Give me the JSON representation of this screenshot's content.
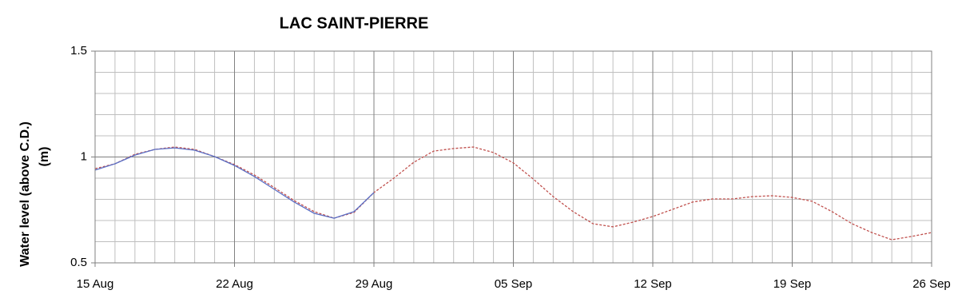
{
  "chart_data": {
    "type": "line",
    "title": "LAC SAINT-PIERRE",
    "y_label": [
      "Water level (above C.D.)",
      "(m)"
    ],
    "xlim": [
      0,
      42
    ],
    "xticks": [
      {
        "value": 0,
        "label": "15 Aug"
      },
      {
        "value": 7,
        "label": "22 Aug"
      },
      {
        "value": 14,
        "label": "29 Aug"
      },
      {
        "value": 21,
        "label": "05 Sep"
      },
      {
        "value": 28,
        "label": "12 Sep"
      },
      {
        "value": 35,
        "label": "19 Sep"
      },
      {
        "value": 42,
        "label": "26 Sep"
      }
    ],
    "xminor_ticks": [
      1,
      2,
      3,
      4,
      5,
      6,
      8,
      9,
      10,
      11,
      12,
      13,
      15,
      16,
      17,
      18,
      19,
      20,
      22,
      23,
      24,
      25,
      26,
      27,
      29,
      30,
      31,
      32,
      33,
      34,
      36,
      37,
      38,
      39,
      40,
      41
    ],
    "ylim": [
      0.5,
      1.5
    ],
    "yticks": [
      0.5,
      1,
      1.5
    ],
    "yminor_ticks": [
      0.6,
      0.7,
      0.8,
      0.9,
      1.1,
      1.2,
      1.3,
      1.4
    ],
    "grid": true,
    "series": [
      {
        "color": "#c0504d",
        "dashed": true,
        "x": [
          0,
          1,
          2,
          3,
          4,
          5,
          6,
          7,
          8,
          9,
          10,
          11,
          12,
          13,
          14,
          15,
          16,
          17,
          18,
          19,
          20,
          21,
          22,
          23,
          24,
          25,
          26,
          27,
          28,
          29,
          30,
          31,
          32,
          33,
          34,
          35,
          36,
          37,
          38,
          39,
          40,
          41,
          42
        ],
        "values": [
          0.945,
          0.968,
          1.013,
          1.036,
          1.047,
          1.036,
          1.002,
          0.964,
          0.915,
          0.855,
          0.794,
          0.742,
          0.711,
          0.738,
          0.832,
          0.9,
          0.975,
          1.028,
          1.04,
          1.047,
          1.021,
          0.972,
          0.896,
          0.813,
          0.742,
          0.685,
          0.67,
          0.692,
          0.719,
          0.753,
          0.787,
          0.802,
          0.802,
          0.813,
          0.817,
          0.809,
          0.791,
          0.742,
          0.685,
          0.643,
          0.609,
          0.625,
          0.643
        ]
      },
      {
        "color": "#5b6fc5",
        "dashed": false,
        "x": [
          0,
          1,
          2,
          3,
          4,
          5,
          6,
          7,
          8,
          9,
          10,
          11,
          12,
          13,
          14
        ],
        "values": [
          0.938,
          0.968,
          1.009,
          1.036,
          1.043,
          1.032,
          1.002,
          0.96,
          0.908,
          0.847,
          0.787,
          0.734,
          0.711,
          0.742,
          0.832
        ]
      }
    ]
  }
}
